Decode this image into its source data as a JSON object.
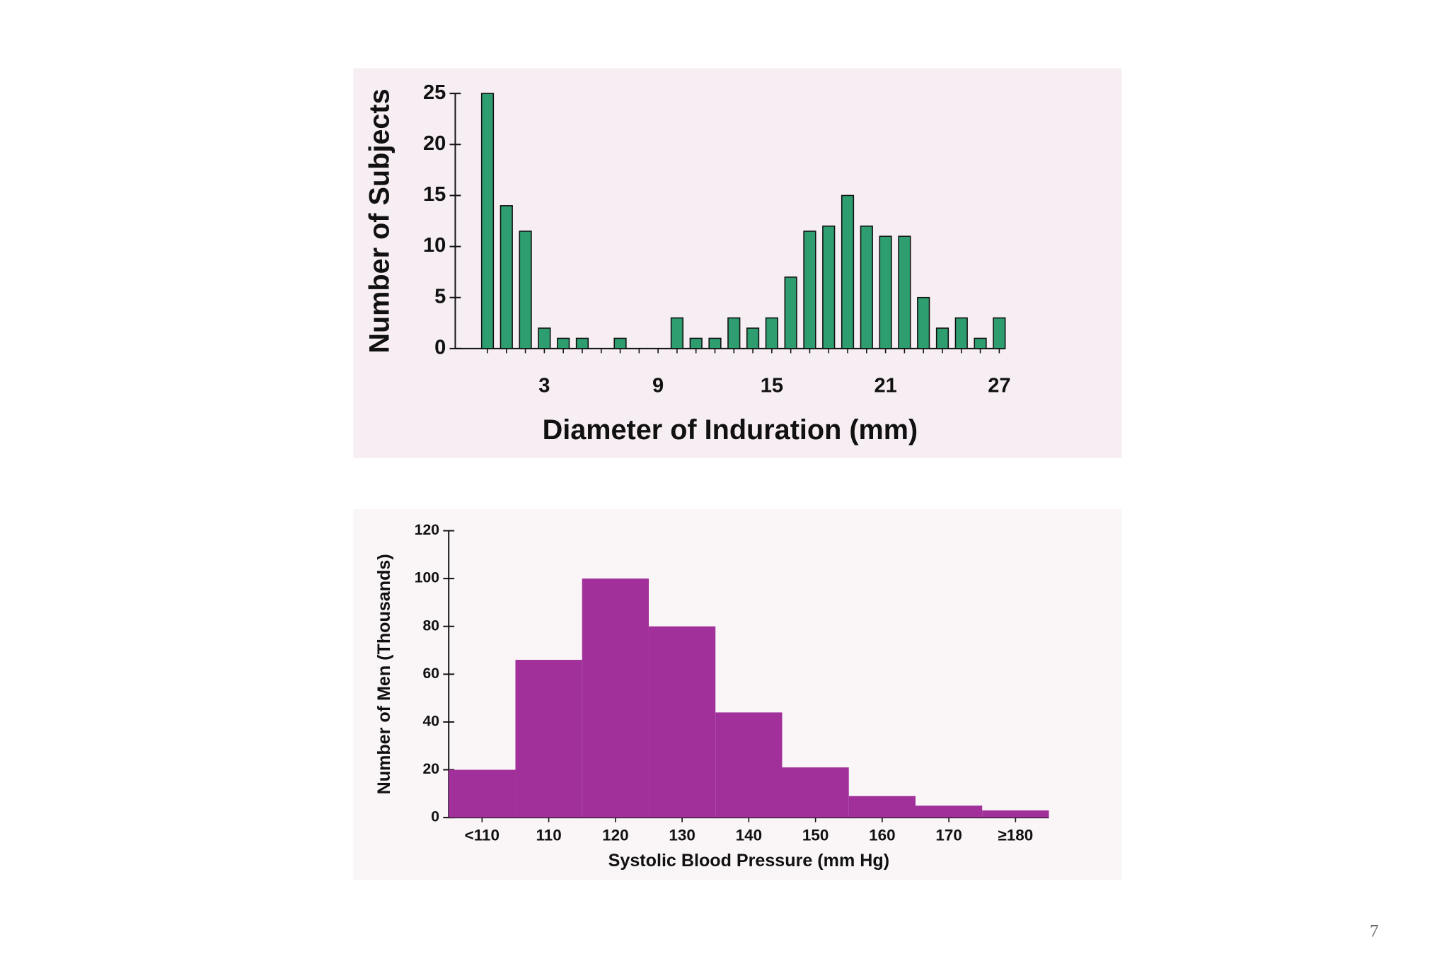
{
  "chart_data": [
    {
      "type": "bar",
      "x_label": "Diameter of Induration (mm)",
      "y_label": "Number of Subjects",
      "x": [
        0,
        1,
        2,
        3,
        4,
        5,
        6,
        7,
        8,
        9,
        10,
        11,
        12,
        13,
        14,
        15,
        16,
        17,
        18,
        19,
        20,
        21,
        22,
        23,
        24,
        25,
        26,
        27
      ],
      "values": [
        25,
        14,
        11.5,
        2,
        1,
        1,
        0,
        1,
        0,
        0,
        3,
        1,
        1,
        3,
        2,
        3,
        7,
        11.5,
        12,
        15,
        12,
        11,
        11,
        5,
        2,
        3,
        1,
        3
      ],
      "color": "#2e9e70",
      "xlim": [
        -1.7,
        27.3
      ],
      "xticks": [
        3,
        9,
        15,
        21,
        27
      ],
      "ylim": [
        0,
        25
      ],
      "yticks": [
        0,
        5,
        10,
        15,
        20,
        25
      ]
    },
    {
      "type": "bar",
      "x_label": "Systolic Blood Pressure (mm Hg)",
      "y_label": "Number of Men (Thousands)",
      "categories": [
        "<110",
        "110",
        "120",
        "130",
        "140",
        "150",
        "160",
        "170",
        "≥180"
      ],
      "values": [
        20,
        66,
        100,
        80,
        44,
        21,
        9,
        5,
        3
      ],
      "color": "#a1309b",
      "ylim": [
        0,
        120
      ],
      "yticks": [
        0,
        20,
        40,
        60,
        80,
        100,
        120
      ]
    }
  ],
  "page_number": "7"
}
